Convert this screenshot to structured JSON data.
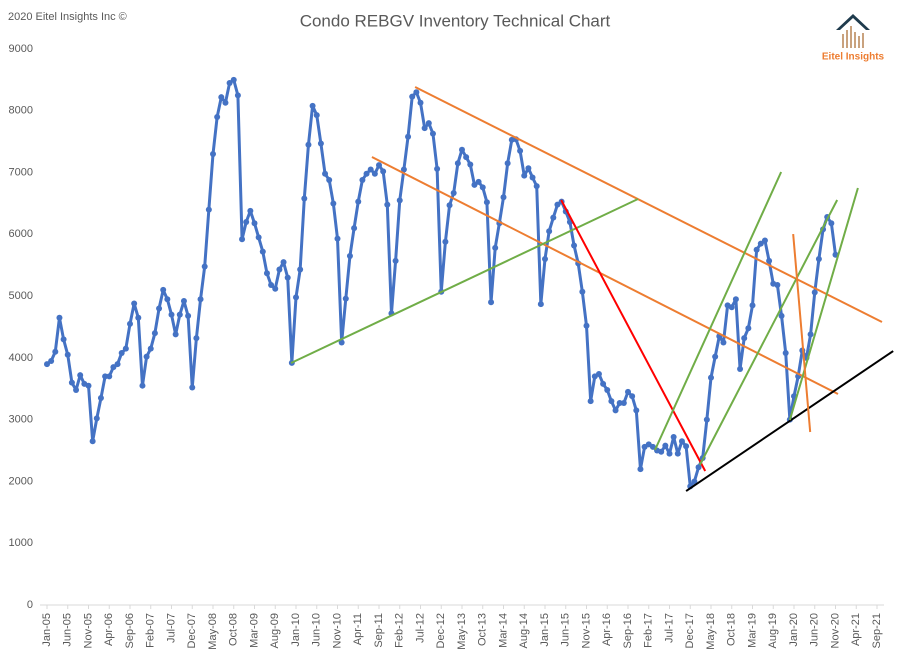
{
  "chart_data": {
    "type": "line",
    "title": "Condo REBGV Inventory Technical Chart",
    "copyright": "2020 Eitel Insights Inc ©",
    "logo_text": "Eitel Insights",
    "color": "#4472c4",
    "categories": [
      "Jan-05",
      null,
      null,
      null,
      null,
      "Jun-05",
      null,
      null,
      null,
      null,
      "Nov-05",
      null,
      null,
      null,
      null,
      "Apr-06",
      null,
      null,
      null,
      null,
      "Sep-06",
      null,
      null,
      null,
      null,
      "Feb-07",
      null,
      null,
      null,
      null,
      "Jul-07",
      null,
      null,
      null,
      null,
      "Dec-07",
      null,
      null,
      null,
      null,
      "May-08",
      null,
      null,
      null,
      null,
      "Oct-08",
      null,
      null,
      null,
      null,
      "Mar-09",
      null,
      null,
      null,
      null,
      "Aug-09",
      null,
      null,
      null,
      null,
      "Jan-10",
      null,
      null,
      null,
      null,
      "Jun-10",
      null,
      null,
      null,
      null,
      "Nov-10",
      null,
      null,
      null,
      null,
      "Apr-11",
      null,
      null,
      null,
      null,
      "Sep-11",
      null,
      null,
      null,
      null,
      "Feb-12",
      null,
      null,
      null,
      null,
      "Jul-12",
      null,
      null,
      null,
      null,
      "Dec-12",
      null,
      null,
      null,
      null,
      "May-13",
      null,
      null,
      null,
      null,
      "Oct-13",
      null,
      null,
      null,
      null,
      "Mar-14",
      null,
      null,
      null,
      null,
      "Aug-14",
      null,
      null,
      null,
      null,
      "Jan-15",
      null,
      null,
      null,
      null,
      "Jun-15",
      null,
      null,
      null,
      null,
      "Nov-15",
      null,
      null,
      null,
      null,
      "Apr-16",
      null,
      null,
      null,
      null,
      "Sep-16",
      null,
      null,
      null,
      null,
      "Feb-17",
      null,
      null,
      null,
      null,
      "Jul-17",
      null,
      null,
      null,
      null,
      "Dec-17",
      null,
      null,
      null,
      null,
      "May-18",
      null,
      null,
      null,
      null,
      "Oct-18",
      null,
      null,
      null,
      null,
      "Mar-19",
      null,
      null,
      null,
      null,
      "Aug-19",
      null,
      null,
      null,
      null,
      "Jan-20",
      null,
      null,
      null,
      null,
      "Jun-20",
      null,
      null,
      null,
      null,
      "Nov-20",
      null,
      null,
      null,
      null,
      "Apr-21",
      null,
      null,
      null,
      null,
      "Sep-21"
    ],
    "values": [
      3900,
      3950,
      4100,
      4650,
      4300,
      4050,
      3600,
      3480,
      3720,
      3580,
      3550,
      2650,
      3020,
      3350,
      3700,
      3700,
      3850,
      3900,
      4080,
      4150,
      4550,
      4880,
      4650,
      3550,
      4020,
      4150,
      4400,
      4800,
      5100,
      4950,
      4700,
      4380,
      4700,
      4920,
      4680,
      3520,
      4320,
      4950,
      5480,
      6400,
      7300,
      7900,
      8220,
      8130,
      8450,
      8500,
      8250,
      5920,
      6200,
      6380,
      6180,
      5950,
      5720,
      5370,
      5180,
      5120,
      5430,
      5550,
      5300,
      3920,
      4980,
      5430,
      6580,
      7450,
      8080,
      7930,
      7470,
      6980,
      6880,
      6500,
      5930,
      4250,
      4960,
      5650,
      6100,
      6530,
      6880,
      6980,
      7050,
      6980,
      7120,
      7020,
      6480,
      4720,
      5570,
      6550,
      7050,
      7580,
      8230,
      8300,
      8130,
      7720,
      7800,
      7630,
      7060,
      5070,
      5880,
      6470,
      6670,
      7150,
      7370,
      7250,
      7130,
      6800,
      6850,
      6760,
      6520,
      4900,
      5780,
      6180,
      6600,
      7150,
      7530,
      7540,
      7350,
      6950,
      7070,
      6920,
      6780,
      4870,
      5600,
      6050,
      6270,
      6480,
      6530,
      6370,
      6200,
      5820,
      5530,
      5070,
      4520,
      3300,
      3700,
      3740,
      3580,
      3480,
      3300,
      3150,
      3270,
      3270,
      3450,
      3380,
      3150,
      2200,
      2560,
      2600,
      2560,
      2500,
      2480,
      2580,
      2450,
      2720,
      2450,
      2650,
      2570,
      1920,
      2000,
      2230,
      2380,
      3000,
      3680,
      4020,
      4350,
      4250,
      4850,
      4820,
      4950,
      3820,
      4320,
      4480,
      4850,
      5750,
      5850,
      5900,
      5570,
      5200,
      5180,
      4680,
      4080,
      3000,
      3380,
      3700,
      4120,
      4000,
      4380,
      5060,
      5600,
      6080,
      6280,
      6180,
      5670,
      null,
      null,
      null,
      null,
      null,
      null,
      null,
      null,
      null,
      null
    ],
    "ylim": [
      0,
      9000
    ],
    "yticks": [
      0,
      1000,
      2000,
      3000,
      4000,
      5000,
      6000,
      7000,
      8000,
      9000
    ],
    "grid": false,
    "trend_lines": [
      {
        "color": "#ed7d31",
        "x": [
          88.7,
          201.2
        ],
        "y": [
          8385,
          4581
        ]
      },
      {
        "color": "#ed7d31",
        "x": [
          78.3,
          190.6
        ],
        "y": [
          7252,
          3415
        ]
      },
      {
        "color": "#70ad47",
        "x": [
          58.8,
          142.4
        ],
        "y": [
          3917,
          6572
        ]
      },
      {
        "color": "#ff0000",
        "x": [
          123.9,
          158.6
        ],
        "y": [
          6556,
          2169
        ]
      },
      {
        "color": "#000000",
        "x": [
          154,
          203.9
        ],
        "y": [
          1845,
          4111
        ]
      },
      {
        "color": "#70ad47",
        "x": [
          146.5,
          176.9
        ],
        "y": [
          2509,
          7009
        ]
      },
      {
        "color": "#70ad47",
        "x": [
          157.3,
          190.4
        ],
        "y": [
          2266,
          6556
        ]
      },
      {
        "color": "#70ad47",
        "x": [
          179,
          195.4
        ],
        "y": [
          2995,
          6750
        ]
      },
      {
        "color": "#ed7d31",
        "x": [
          179.8,
          183.9
        ],
        "y": [
          6005,
          2800
        ]
      }
    ]
  }
}
